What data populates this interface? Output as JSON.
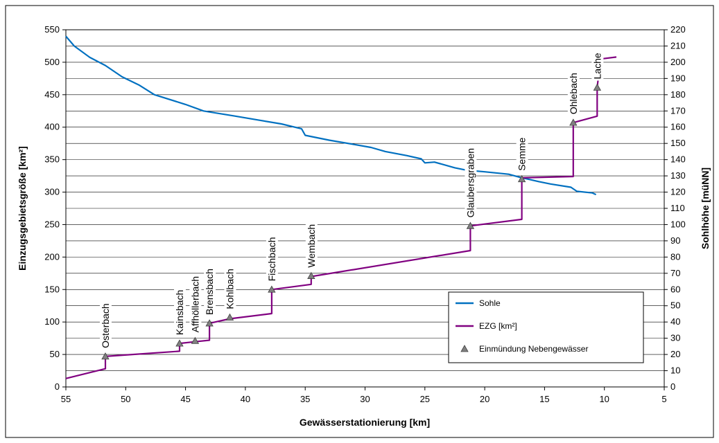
{
  "chart_data": {
    "type": "line",
    "xlabel": "Gewässerstationierung [km]",
    "ylabel_left": "Einzugsgebietsgröße [km²]",
    "ylabel_right": "Sohlhöhe [müNN]",
    "x_range": [
      55,
      5
    ],
    "x_ticks": [
      55,
      50,
      45,
      40,
      35,
      30,
      25,
      20,
      15,
      10,
      5
    ],
    "y_left_range": [
      0,
      550
    ],
    "y_left_ticks": [
      0,
      50,
      100,
      150,
      200,
      250,
      300,
      350,
      400,
      450,
      500,
      550
    ],
    "y_right_range": [
      0,
      220
    ],
    "y_right_ticks": [
      0,
      10,
      20,
      30,
      40,
      50,
      60,
      70,
      80,
      90,
      100,
      110,
      120,
      130,
      140,
      150,
      160,
      170,
      180,
      190,
      200,
      210,
      220
    ],
    "grid": true,
    "legend_position": "bottom-right",
    "series": [
      {
        "name": "Sohle",
        "axis": "right",
        "color": "#0070C0",
        "points": [
          [
            55.0,
            216
          ],
          [
            54.3,
            210
          ],
          [
            53.0,
            203
          ],
          [
            51.7,
            198
          ],
          [
            50.3,
            191
          ],
          [
            48.9,
            186
          ],
          [
            47.6,
            180
          ],
          [
            45.0,
            174
          ],
          [
            43.5,
            170
          ],
          [
            41.0,
            167
          ],
          [
            39.0,
            164.5
          ],
          [
            37.0,
            162
          ],
          [
            35.3,
            159
          ],
          [
            35.0,
            155
          ],
          [
            33.0,
            152
          ],
          [
            31.0,
            149.5
          ],
          [
            29.5,
            147.5
          ],
          [
            28.3,
            145
          ],
          [
            26.5,
            142.5
          ],
          [
            25.3,
            140.5
          ],
          [
            25.0,
            138
          ],
          [
            24.2,
            138.5
          ],
          [
            22.5,
            135
          ],
          [
            21.5,
            133.5
          ],
          [
            20.0,
            132.5
          ],
          [
            18.0,
            131
          ],
          [
            17.0,
            129
          ],
          [
            15.5,
            126.5
          ],
          [
            14.5,
            125
          ],
          [
            12.8,
            123
          ],
          [
            12.3,
            120.5
          ],
          [
            11.0,
            119.5
          ],
          [
            10.7,
            118.5
          ]
        ]
      },
      {
        "name": "EZG [km²]",
        "axis": "left",
        "color": "#800080",
        "points": [
          [
            55.0,
            13
          ],
          [
            51.7,
            28
          ],
          [
            51.7,
            47
          ],
          [
            45.5,
            55
          ],
          [
            45.5,
            67
          ],
          [
            44.0,
            70
          ],
          [
            43.0,
            72
          ],
          [
            43.0,
            98
          ],
          [
            41.3,
            105
          ],
          [
            37.8,
            113
          ],
          [
            37.8,
            150
          ],
          [
            34.5,
            158
          ],
          [
            34.5,
            170
          ],
          [
            21.2,
            210
          ],
          [
            21.2,
            248
          ],
          [
            16.9,
            258
          ],
          [
            16.9,
            322
          ],
          [
            12.6,
            324
          ],
          [
            12.6,
            407
          ],
          [
            10.6,
            417
          ],
          [
            10.6,
            462
          ],
          [
            10.3,
            505
          ],
          [
            9.0,
            508
          ]
        ]
      }
    ],
    "tributaries_series": {
      "name": "Einmündung Nebengewässer",
      "color": "#808080",
      "points": [
        {
          "label": "Osterbach",
          "x": 51.7,
          "y": 47
        },
        {
          "label": "Kainsbach",
          "x": 45.5,
          "y": 67
        },
        {
          "label": "Affhöllerbach",
          "x": 44.2,
          "y": 71
        },
        {
          "label": "Brensbach",
          "x": 43.0,
          "y": 98
        },
        {
          "label": "Kohlbach",
          "x": 41.3,
          "y": 107
        },
        {
          "label": "Fischbach",
          "x": 37.8,
          "y": 150
        },
        {
          "label": "Wembach",
          "x": 34.5,
          "y": 171
        },
        {
          "label": "Glaubersgraben",
          "x": 21.2,
          "y": 248
        },
        {
          "label": "Semme",
          "x": 16.9,
          "y": 320
        },
        {
          "label": "Ohlebach",
          "x": 12.6,
          "y": 407
        },
        {
          "label": "Lache",
          "x": 10.6,
          "y": 461
        }
      ]
    }
  }
}
